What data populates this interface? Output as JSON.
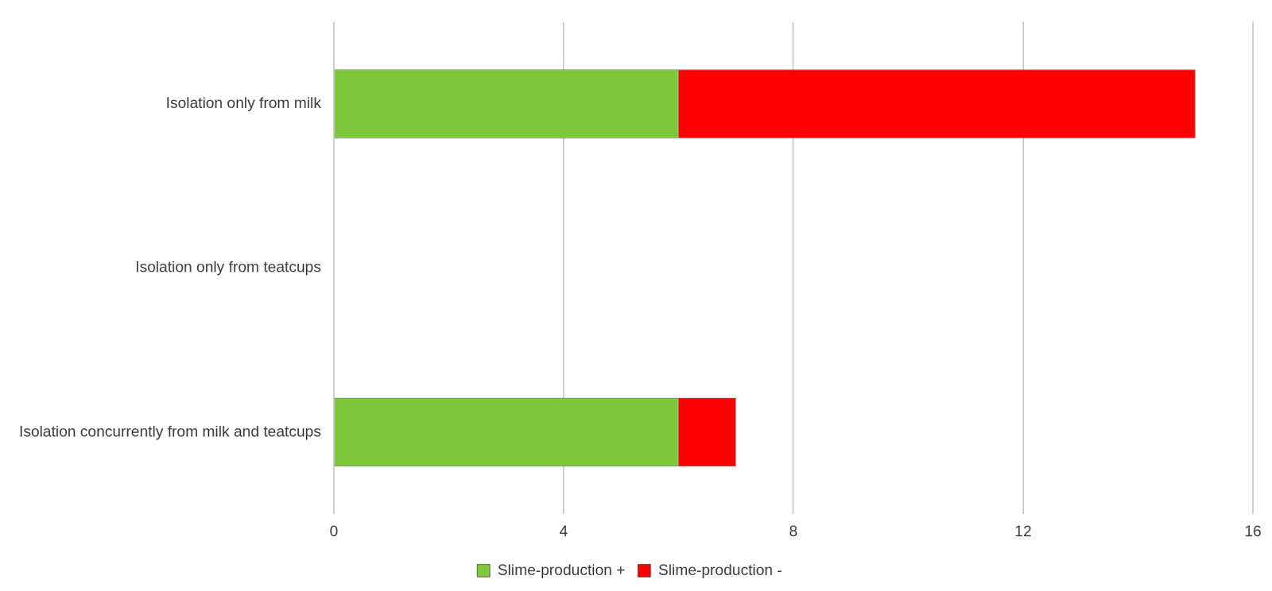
{
  "chart_data": {
    "type": "bar",
    "orientation": "horizontal",
    "stacked": true,
    "categories": [
      "Isolation only from milk",
      "Isolation only from teatcups",
      "Isolation concurrently from milk and teatcups"
    ],
    "series": [
      {
        "name": "Slime-production +",
        "color": "#7dc83a",
        "values": [
          6,
          0,
          6
        ]
      },
      {
        "name": "Slime-production -",
        "color": "#ff0000",
        "values": [
          9,
          0,
          1
        ]
      }
    ],
    "xlim": [
      0,
      16
    ],
    "xticks": [
      0,
      4,
      8,
      12,
      16
    ],
    "grid": true,
    "legend": "bottom"
  }
}
